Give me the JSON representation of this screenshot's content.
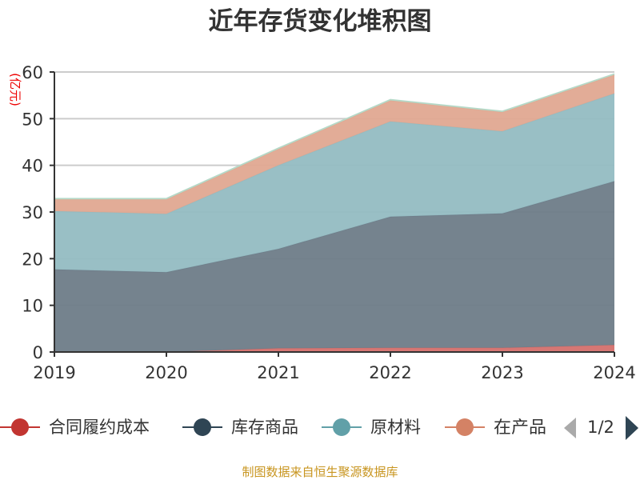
{
  "chart_data": {
    "type": "area",
    "stacked": true,
    "title": "近年存货变化堆积图",
    "ylabel": "(亿元)",
    "xlabel": "",
    "categories": [
      "2019",
      "2020",
      "2021",
      "2022",
      "2023",
      "2024"
    ],
    "ylim": [
      0,
      60
    ],
    "yticks": [
      0,
      10,
      20,
      30,
      40,
      50,
      60
    ],
    "grid": true,
    "legend_position": "bottom",
    "legend_page": "1/2",
    "series": [
      {
        "name": "合同履约成本",
        "color": "#c23531",
        "fill": "#d4706d",
        "values": [
          0,
          0,
          0.8,
          0.9,
          0.9,
          1.5
        ]
      },
      {
        "name": "库存商品",
        "color": "#2f4554",
        "fill": "#6e7c88",
        "values": [
          17.7,
          17.1,
          21.3,
          28.1,
          28.8,
          35.1
        ]
      },
      {
        "name": "原材料",
        "color": "#61a0a8",
        "fill": "#93bcc2",
        "values": [
          12.5,
          12.5,
          17.9,
          20.4,
          17.6,
          18.8
        ]
      },
      {
        "name": "在产品",
        "color": "#d48265",
        "fill": "#e0a891",
        "values": [
          2.5,
          3.1,
          3.5,
          4.5,
          4.1,
          4.0
        ]
      },
      {
        "color": "#91c7ae",
        "fill": "#b5d9c8",
        "values": [
          0.2,
          0.2,
          0.2,
          0.2,
          0.2,
          0.2
        ]
      }
    ]
  },
  "legend_labels": [
    "合同履约成本",
    "库存商品",
    "原材料",
    "在产品"
  ],
  "source": "制图数据来自恒生聚源数据库"
}
